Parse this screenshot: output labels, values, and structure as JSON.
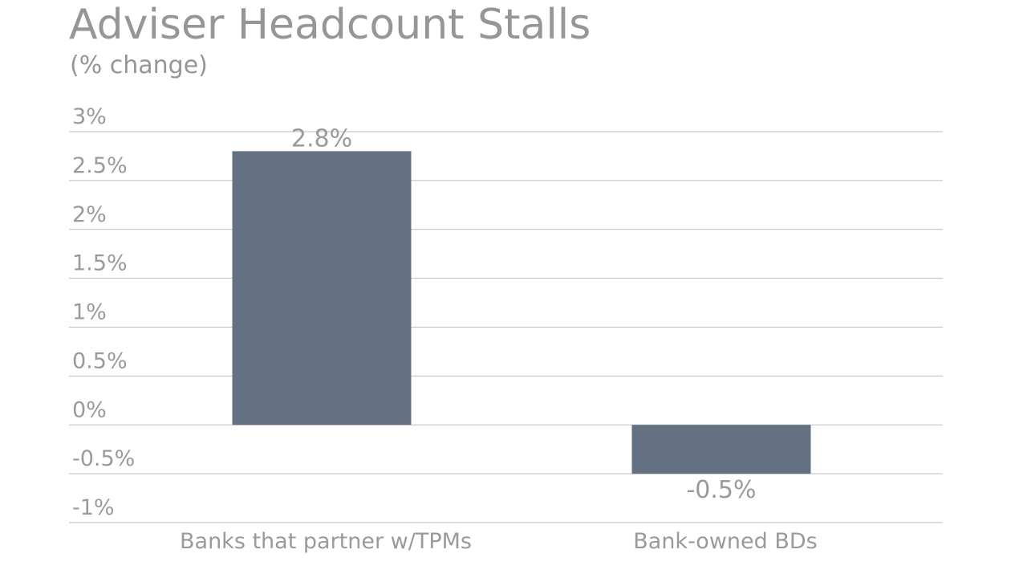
{
  "title": "Adviser Headcount Stalls",
  "subtitle": "(% change)",
  "chart_data": {
    "type": "bar",
    "categories": [
      "Banks that partner w/TPMs",
      "Bank-owned BDs"
    ],
    "values": [
      2.8,
      -0.5
    ],
    "data_labels": [
      "2.8%",
      "-0.5%"
    ],
    "ylim": [
      -1,
      3
    ],
    "yticks": [
      3,
      2.5,
      2,
      1.5,
      1,
      0.5,
      0,
      -0.5,
      -1
    ],
    "ytick_labels": [
      "3%",
      "2.5%",
      "2%",
      "1.5%",
      "1%",
      "0.5%",
      "0%",
      "-0.5%",
      "-1%"
    ],
    "grid": true,
    "colors": {
      "bar": "#637182",
      "grid": "#bdbdbd",
      "text": "#9a9a9a"
    }
  }
}
